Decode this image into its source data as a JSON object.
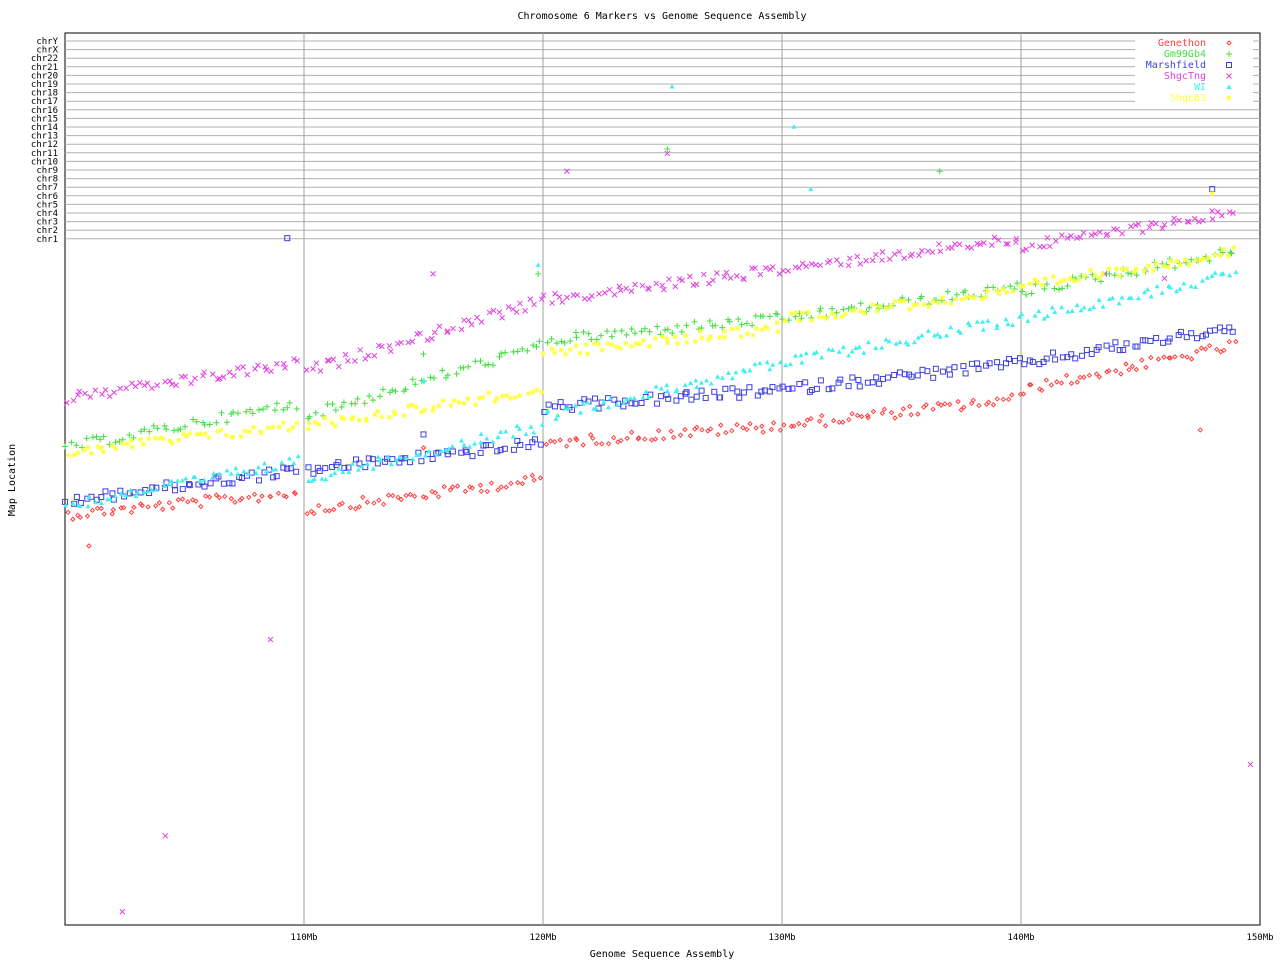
{
  "chart_data": {
    "type": "scatter",
    "title": "Chromosome 6 Markers vs Genome Sequence Assembly",
    "xlabel": "Genome Sequence Assembly",
    "ylabel": "Map Location",
    "x_range_mb": [
      100,
      150
    ],
    "x_ticks": [
      {
        "value": 110,
        "label": "110Mb"
      },
      {
        "value": 120,
        "label": "120Mb"
      },
      {
        "value": 130,
        "label": "130Mb"
      },
      {
        "value": 140,
        "label": "140Mb"
      },
      {
        "value": 150,
        "label": "150Mb"
      }
    ],
    "chromosome_labels": [
      "chrY",
      "chrX",
      "chr22",
      "chr21",
      "chr20",
      "chr19",
      "chr18",
      "chr17",
      "chr16",
      "chr15",
      "chr14",
      "chr13",
      "chr12",
      "chr11",
      "chr10",
      "chr9",
      "chr8",
      "chr7",
      "chr6",
      "chr5",
      "chr4",
      "chr3",
      "chr2",
      "chr1"
    ],
    "legend_position": "top-right",
    "grid": true,
    "series": [
      {
        "name": "Genethon",
        "color": "#ff4040",
        "symbol": "diamond",
        "bands": [
          [
            100,
            109.8,
            0.515,
            0.54
          ],
          [
            110,
            120,
            0.5,
            0.535
          ],
          [
            120,
            130,
            0.44,
            0.46
          ],
          [
            130,
            140,
            0.41,
            0.44
          ],
          [
            140,
            149,
            0.35,
            0.4
          ]
        ],
        "outliers": [
          [
            101,
            0.575
          ],
          [
            115,
            0.465
          ],
          [
            147.5,
            0.445
          ]
        ]
      },
      {
        "name": "Gm99Gb4",
        "color": "#40e040",
        "symbol": "plus",
        "bands": [
          [
            100,
            109.8,
            0.415,
            0.465
          ],
          [
            110,
            120,
            0.35,
            0.43
          ],
          [
            120,
            130,
            0.32,
            0.345
          ],
          [
            130,
            140,
            0.285,
            0.32
          ],
          [
            140,
            149,
            0.245,
            0.29
          ]
        ],
        "outliers": [
          [
            115,
            0.36
          ],
          [
            119.8,
            0.27
          ],
          [
            125.2,
            0.13
          ],
          [
            136.6,
            0.155
          ]
        ]
      },
      {
        "name": "Marshfield",
        "color": "#4040e0",
        "symbol": "square",
        "bands": [
          [
            100,
            109.8,
            0.49,
            0.525
          ],
          [
            110,
            120,
            0.46,
            0.49
          ],
          [
            120,
            130,
            0.4,
            0.42
          ],
          [
            130,
            140,
            0.37,
            0.4
          ],
          [
            140,
            149,
            0.33,
            0.37
          ]
        ],
        "outliers": [
          [
            109.3,
            0.23
          ],
          [
            148,
            0.175
          ],
          [
            115,
            0.45
          ]
        ]
      },
      {
        "name": "ShgcTng",
        "color": "#e040e0",
        "symbol": "x",
        "bands": [
          [
            100,
            109.8,
            0.37,
            0.41
          ],
          [
            110,
            120,
            0.3,
            0.38
          ],
          [
            120,
            130,
            0.265,
            0.3
          ],
          [
            130,
            140,
            0.23,
            0.265
          ],
          [
            140,
            149,
            0.2,
            0.24
          ]
        ],
        "outliers": [
          [
            102.4,
            0.985
          ],
          [
            104.2,
            0.9
          ],
          [
            108.6,
            0.68
          ],
          [
            115.4,
            0.27
          ],
          [
            121,
            0.155
          ],
          [
            125.2,
            0.135
          ],
          [
            149.6,
            0.82
          ],
          [
            143.5,
            0.27
          ],
          [
            146,
            0.275
          ]
        ]
      },
      {
        "name": "WI",
        "color": "#40f0f0",
        "symbol": "triangle",
        "bands": [
          [
            100,
            109.8,
            0.48,
            0.53
          ],
          [
            110,
            120,
            0.44,
            0.5
          ],
          [
            120,
            130,
            0.37,
            0.43
          ],
          [
            130,
            140,
            0.32,
            0.37
          ],
          [
            140,
            149,
            0.27,
            0.32
          ]
        ],
        "outliers": [
          [
            125.4,
            0.06
          ],
          [
            119.8,
            0.26
          ],
          [
            130.5,
            0.105
          ],
          [
            131.2,
            0.175
          ],
          [
            115,
            0.39
          ]
        ]
      },
      {
        "name": "Shgc63",
        "color": "#ffff40",
        "symbol": "star",
        "bands": [
          [
            100,
            109.8,
            0.44,
            0.47
          ],
          [
            110,
            120,
            0.4,
            0.44
          ],
          [
            120,
            130,
            0.33,
            0.36
          ],
          [
            130,
            140,
            0.29,
            0.32
          ],
          [
            140,
            149,
            0.245,
            0.285
          ]
        ],
        "outliers": [
          [
            148,
            0.18
          ]
        ]
      }
    ]
  }
}
